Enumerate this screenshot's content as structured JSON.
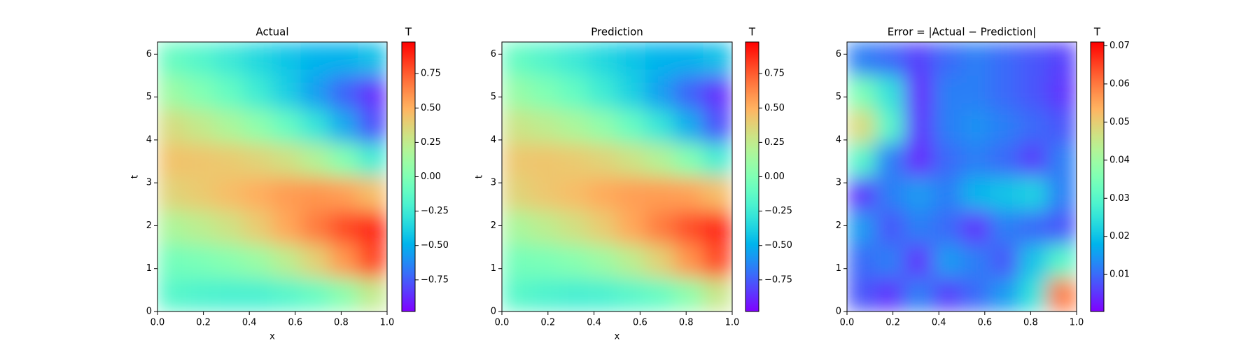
{
  "chart_data": [
    {
      "type": "heatmap",
      "title": "Actual",
      "x_label": "x",
      "y_label": "t",
      "colormap": "rainbow",
      "x": [
        0.0625,
        0.1875,
        0.3125,
        0.4375,
        0.5625,
        0.6875,
        0.8125,
        0.9375
      ],
      "y": [
        0.3927,
        1.1781,
        1.9635,
        2.7489,
        3.5343,
        4.3197,
        5.1051,
        5.8905
      ],
      "z": [
        [
          -0.16,
          -0.19,
          -0.21,
          -0.21,
          -0.17,
          -0.1,
          0.04,
          0.25
        ],
        [
          -0.05,
          -0.02,
          0.03,
          0.1,
          0.23,
          0.38,
          0.58,
          0.81
        ],
        [
          0.17,
          0.23,
          0.3,
          0.4,
          0.53,
          0.66,
          0.79,
          0.89
        ],
        [
          0.37,
          0.41,
          0.46,
          0.51,
          0.57,
          0.59,
          0.56,
          0.46
        ],
        [
          0.44,
          0.43,
          0.41,
          0.37,
          0.31,
          0.2,
          0.02,
          -0.23
        ],
        [
          0.33,
          0.26,
          0.17,
          0.06,
          -0.09,
          -0.28,
          -0.52,
          -0.78
        ],
        [
          0.11,
          0.01,
          -0.1,
          -0.24,
          -0.39,
          -0.56,
          -0.73,
          -0.87
        ],
        [
          -0.09,
          -0.17,
          -0.26,
          -0.35,
          -0.43,
          -0.49,
          -0.5,
          -0.45
        ]
      ],
      "xlim": [
        0,
        1
      ],
      "ylim": [
        0,
        6.2832
      ],
      "xticks": [
        {
          "value": 0,
          "label": "0.0"
        },
        0.2,
        0.4,
        0.6,
        0.8,
        {
          "value": 1,
          "label": "1.0"
        }
      ],
      "yticks": [
        0,
        1,
        2,
        3,
        4,
        5,
        6
      ],
      "colorbar": {
        "label": "T",
        "lim": [
          -0.98,
          0.98
        ],
        "ticks": [
          {
            "value": -0.75,
            "label": "−0.75"
          },
          {
            "value": -0.5,
            "label": "−0.50"
          },
          {
            "value": -0.25,
            "label": "−0.25"
          },
          {
            "value": 0,
            "label": "0.00"
          },
          0.25,
          {
            "value": 0.5,
            "label": "0.50"
          },
          0.75
        ]
      }
    },
    {
      "type": "heatmap",
      "title": "Prediction",
      "x_label": "x",
      "y_label": "t",
      "colormap": "rainbow",
      "x": [
        0.0625,
        0.1875,
        0.3125,
        0.4375,
        0.5625,
        0.6875,
        0.8125,
        0.9375
      ],
      "y": [
        0.3927,
        1.1781,
        1.9635,
        2.7489,
        3.5343,
        4.3197,
        5.1051,
        5.8905
      ],
      "z": [
        [
          -0.15,
          -0.19,
          -0.22,
          -0.21,
          -0.16,
          -0.1,
          0.05,
          0.27
        ],
        [
          -0.04,
          -0.02,
          0.03,
          0.11,
          0.23,
          0.38,
          0.59,
          0.8
        ],
        [
          0.16,
          0.23,
          0.31,
          0.4,
          0.53,
          0.66,
          0.78,
          0.89
        ],
        [
          0.37,
          0.42,
          0.46,
          0.52,
          0.56,
          0.57,
          0.55,
          0.46
        ],
        [
          0.42,
          0.43,
          0.41,
          0.37,
          0.3,
          0.2,
          0.02,
          -0.22
        ],
        [
          0.29,
          0.24,
          0.17,
          0.07,
          -0.09,
          -0.28,
          -0.51,
          -0.78
        ],
        [
          0.09,
          0.0,
          -0.1,
          -0.24,
          -0.38,
          -0.56,
          -0.73,
          -0.87
        ],
        [
          -0.1,
          -0.18,
          -0.26,
          -0.35,
          -0.43,
          -0.49,
          -0.5,
          -0.45
        ]
      ],
      "xlim": [
        0,
        1
      ],
      "ylim": [
        0,
        6.2832
      ],
      "xticks": [
        {
          "value": 0,
          "label": "0.0"
        },
        0.2,
        0.4,
        0.6,
        0.8,
        {
          "value": 1,
          "label": "1.0"
        }
      ],
      "yticks": [
        0,
        1,
        2,
        3,
        4,
        5,
        6
      ],
      "colorbar": {
        "label": "T",
        "lim": [
          -0.98,
          0.98
        ],
        "ticks": [
          {
            "value": -0.75,
            "label": "−0.75"
          },
          {
            "value": -0.5,
            "label": "−0.50"
          },
          {
            "value": -0.25,
            "label": "−0.25"
          },
          {
            "value": 0,
            "label": "0.00"
          },
          0.25,
          {
            "value": 0.5,
            "label": "0.50"
          },
          0.75
        ]
      }
    },
    {
      "type": "heatmap",
      "title": "Error = |Actual − Prediction|",
      "colormap": "rainbow",
      "x": [
        0.0625,
        0.1875,
        0.3125,
        0.4375,
        0.5625,
        0.6875,
        0.8125,
        0.9375
      ],
      "y": [
        0.3927,
        1.1781,
        1.9635,
        2.7489,
        3.5343,
        4.3197,
        5.1051,
        5.8905
      ],
      "z": [
        [
          0.008,
          0.005,
          0.012,
          0.006,
          0.01,
          0.015,
          0.025,
          0.06
        ],
        [
          0.01,
          0.012,
          0.005,
          0.015,
          0.012,
          0.008,
          0.02,
          0.03
        ],
        [
          0.015,
          0.008,
          0.012,
          0.01,
          0.005,
          0.012,
          0.01,
          0.008
        ],
        [
          0.005,
          0.012,
          0.015,
          0.012,
          0.018,
          0.02,
          0.022,
          0.012
        ],
        [
          0.03,
          0.012,
          0.004,
          0.01,
          0.012,
          0.01,
          0.006,
          0.012
        ],
        [
          0.048,
          0.03,
          0.005,
          0.012,
          0.014,
          0.012,
          0.01,
          0.008
        ],
        [
          0.035,
          0.025,
          0.004,
          0.012,
          0.012,
          0.01,
          0.008,
          0.005
        ],
        [
          0.012,
          0.01,
          0.006,
          0.01,
          0.012,
          0.01,
          0.008,
          0.006
        ]
      ],
      "xlim": [
        0,
        1
      ],
      "ylim": [
        0,
        6.2832
      ],
      "xticks": [
        {
          "value": 0,
          "label": "0.0"
        },
        0.2,
        0.4,
        0.6,
        0.8,
        {
          "value": 1,
          "label": "1.0"
        }
      ],
      "yticks": [
        0,
        1,
        2,
        3,
        4,
        5,
        6
      ],
      "colorbar": {
        "label": "T",
        "lim": [
          0.0003,
          0.071
        ],
        "ticks": [
          0.01,
          0.02,
          0.03,
          0.04,
          0.05,
          0.06,
          0.07
        ]
      }
    }
  ]
}
